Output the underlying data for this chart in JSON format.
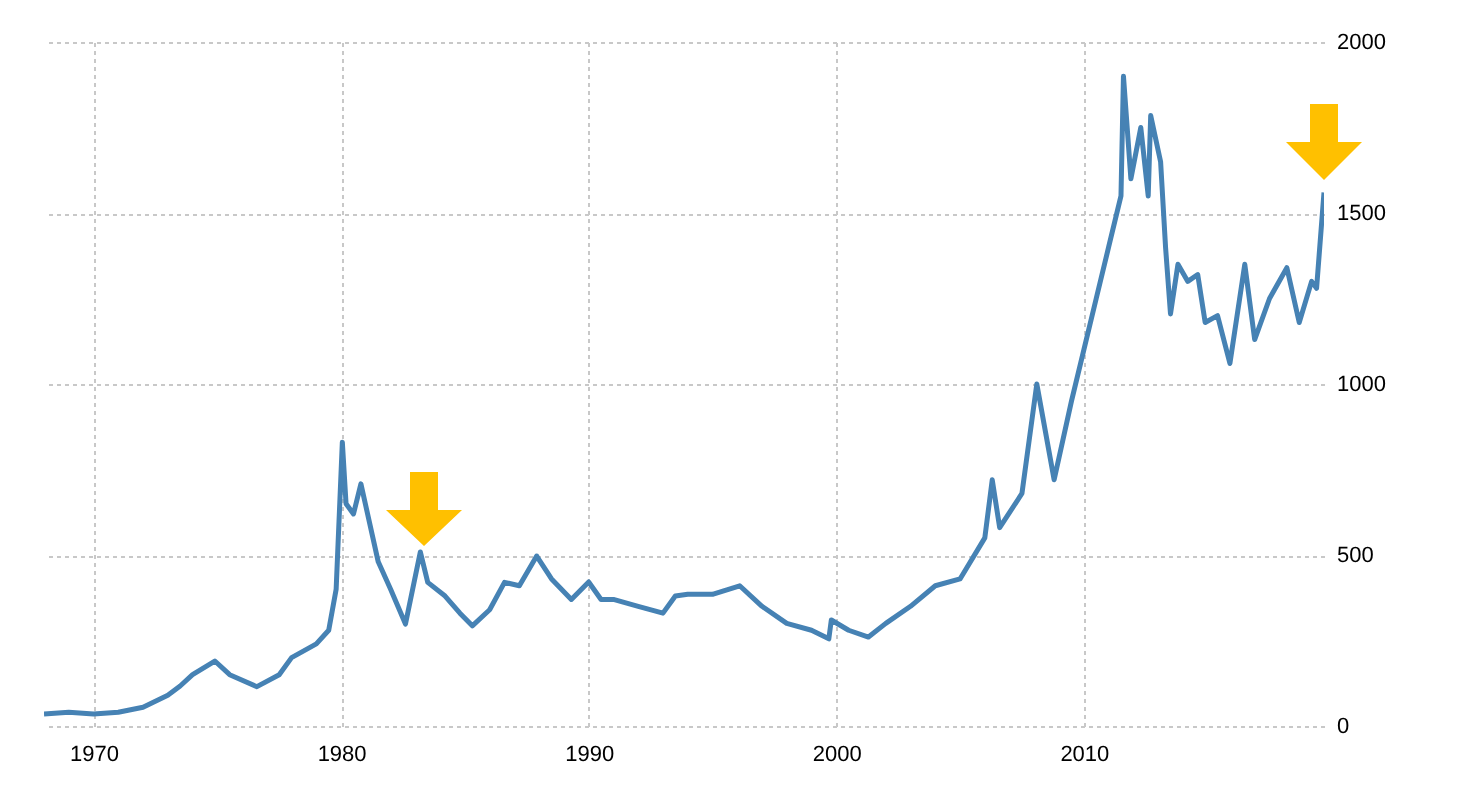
{
  "chart_data": {
    "type": "line",
    "x": [
      1968.0,
      1969.0,
      1970.0,
      1971.0,
      1972.0,
      1973.0,
      1973.5,
      1974.0,
      1974.9,
      1975.5,
      1976.6,
      1977.5,
      1978.0,
      1979.0,
      1979.5,
      1979.8,
      1980.05,
      1980.2,
      1980.5,
      1980.8,
      1981.5,
      1982.0,
      1982.6,
      1983.2,
      1983.5,
      1984.2,
      1984.8,
      1985.3,
      1986.0,
      1986.6,
      1987.2,
      1987.9,
      1988.5,
      1989.3,
      1990.0,
      1990.5,
      1991.0,
      1992.0,
      1993.0,
      1993.5,
      1994.0,
      1995.0,
      1996.1,
      1997.0,
      1998.0,
      1999.0,
      1999.7,
      1999.8,
      2000.5,
      2001.3,
      2002.0,
      2003.0,
      2004.0,
      2005.0,
      2006.0,
      2006.3,
      2006.6,
      2007.5,
      2008.1,
      2008.8,
      2009.5,
      2010.0,
      2010.5,
      2011.0,
      2011.5,
      2011.6,
      2011.9,
      2012.3,
      2012.6,
      2012.7,
      2013.1,
      2013.3,
      2013.5,
      2013.8,
      2014.2,
      2014.6,
      2014.9,
      2015.4,
      2015.9,
      2016.5,
      2016.9,
      2017.5,
      2018.2,
      2018.7,
      2019.2,
      2019.4,
      2019.7
    ],
    "series": [
      {
        "color": "#4682b4",
        "values": [
          35,
          40,
          35,
          40,
          55,
          90,
          117,
          150,
          190,
          150,
          115,
          150,
          200,
          240,
          280,
          400,
          830,
          650,
          620,
          708,
          480,
          400,
          298,
          509,
          420,
          380,
          330,
          293,
          340,
          420,
          410,
          497,
          430,
          370,
          421,
          370,
          370,
          350,
          330,
          380,
          385,
          385,
          410,
          350,
          300,
          280,
          255,
          310,
          280,
          260,
          300,
          350,
          410,
          430,
          550,
          720,
          580,
          680,
          1000,
          720,
          950,
          1100,
          1250,
          1400,
          1550,
          1900,
          1600,
          1750,
          1550,
          1785,
          1650,
          1400,
          1205,
          1350,
          1300,
          1320,
          1180,
          1200,
          1060,
          1350,
          1130,
          1250,
          1340,
          1180,
          1300,
          1280,
          1560
        ]
      }
    ],
    "xlim": [
      1968.0,
      2019.7
    ],
    "xticks": [
      1970,
      1980,
      1990,
      2000,
      2010
    ],
    "ylim": [
      0,
      2000
    ],
    "yticks": [
      0,
      500,
      1000,
      1500,
      2000
    ],
    "grid": true
  }
}
